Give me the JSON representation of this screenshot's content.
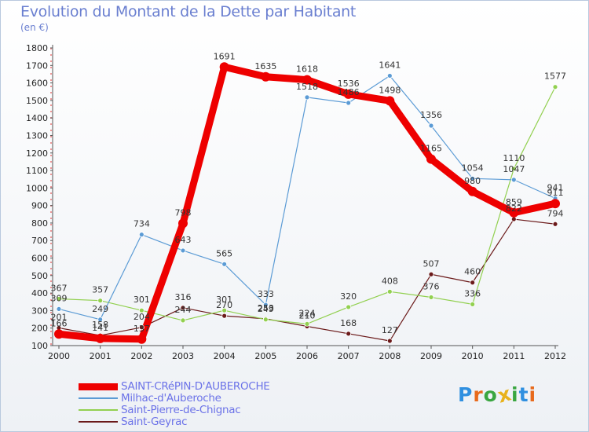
{
  "title": "Evolution du Montant de la Dette par Habitant",
  "subtitle": "(en €)",
  "logo": {
    "text": "Proxiti",
    "letter_colors": [
      "#2f8fe0",
      "#e86a1c",
      "#3aa640",
      "#e8b21c",
      "#3aa640",
      "#2f8fe0",
      "#e86a1c"
    ]
  },
  "chart_data": {
    "type": "line",
    "x": [
      2000,
      2001,
      2002,
      2003,
      2004,
      2005,
      2006,
      2007,
      2008,
      2009,
      2010,
      2011,
      2012
    ],
    "ylim": [
      100,
      1800
    ],
    "yticks": [
      100,
      200,
      300,
      400,
      500,
      600,
      700,
      800,
      900,
      1000,
      1100,
      1200,
      1300,
      1400,
      1500,
      1600,
      1700,
      1800
    ],
    "grid": false,
    "legend_position": "bottom-left",
    "series": [
      {
        "name": "SAINT-CRéPIN-D'AUBEROCHE",
        "color": "#ee0000",
        "values": [
          166,
          141,
          137,
          798,
          1691,
          1635,
          1618,
          1536,
          1498,
          1165,
          980,
          859,
          911
        ]
      },
      {
        "name": "Milhac-d'Auberoche",
        "color": "#5b9bd5",
        "values": [
          309,
          249,
          734,
          643,
          565,
          333,
          1518,
          1486,
          1641,
          1356,
          1054,
          1047,
          941
        ]
      },
      {
        "name": "Saint-Pierre-de-Chignac",
        "color": "#92d050",
        "values": [
          367,
          357,
          301,
          244,
          301,
          249,
          224,
          320,
          408,
          376,
          336,
          1110,
          1577
        ]
      },
      {
        "name": "Saint-Geyrac",
        "color": "#6b1a1a",
        "values": [
          201,
          158,
          204,
          316,
          270,
          253,
          210,
          168,
          127,
          507,
          460,
          822,
          794
        ]
      }
    ]
  }
}
